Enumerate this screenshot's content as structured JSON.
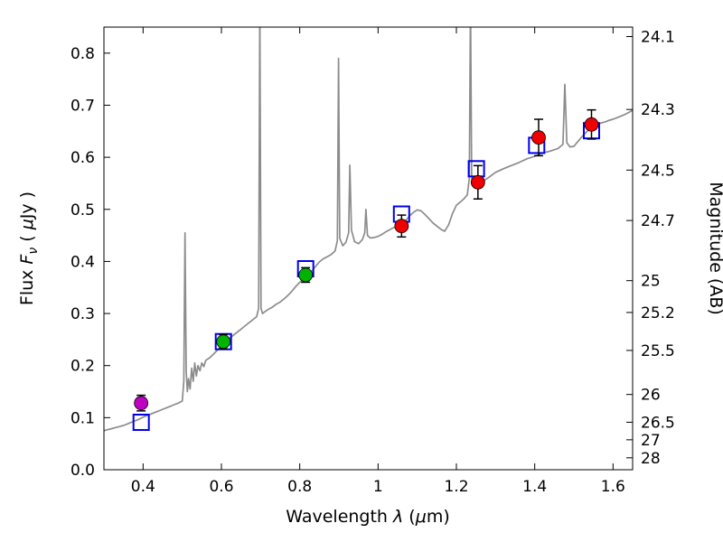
{
  "figure": {
    "background": "#ffffff",
    "xlabel_parts": [
      "Wavelength ",
      "λ",
      " (",
      "μ",
      "m)"
    ],
    "ylabel_left_parts": [
      "Flux ",
      "F",
      "ν",
      " ( ",
      "μ",
      "Jy )"
    ],
    "ylabel_right": "Magnitude (AB)"
  },
  "chart_data": {
    "type": "line+scatter",
    "title": "",
    "xlabel": "Wavelength λ (μm)",
    "ylabel_left": "Flux Fν ( μJy )",
    "ylabel_right": "Magnitude (AB)",
    "xlim": [
      0.3,
      1.65
    ],
    "ylim": [
      0.0,
      0.85
    ],
    "grid": false,
    "legend": "none",
    "x_ticks": {
      "values": [
        0.4,
        0.6,
        0.8,
        1.0,
        1.2,
        1.4,
        1.6
      ],
      "labels": [
        "0.4",
        "0.6",
        "0.8",
        "1",
        "1.2",
        "1.4",
        "1.6"
      ]
    },
    "y_ticks_left": {
      "values": [
        0.0,
        0.1,
        0.2,
        0.3,
        0.4,
        0.5,
        0.6,
        0.7,
        0.8
      ],
      "labels": [
        "0.0",
        "0.1",
        "0.2",
        "0.3",
        "0.4",
        "0.5",
        "0.6",
        "0.7",
        "0.8"
      ]
    },
    "y_ticks_right": {
      "note": "AB magnitude axis, positions given as equivalent flux in uJy",
      "values_flux": [
        0.8318,
        0.6918,
        0.5754,
        0.4786,
        0.3631,
        0.302,
        0.2291,
        0.1445,
        0.0912,
        0.0575,
        0.0229
      ],
      "labels": [
        "24.1",
        "24.3",
        "24.5",
        "24.7",
        "25",
        "25.2",
        "25.5",
        "26",
        "26.5",
        "27",
        "28"
      ]
    },
    "spectrum": {
      "name": "model-spectrum",
      "color": "#8c8c8c",
      "points": [
        [
          0.3,
          0.075
        ],
        [
          0.31,
          0.077
        ],
        [
          0.32,
          0.079
        ],
        [
          0.33,
          0.081
        ],
        [
          0.34,
          0.083
        ],
        [
          0.35,
          0.085
        ],
        [
          0.36,
          0.088
        ],
        [
          0.37,
          0.091
        ],
        [
          0.38,
          0.094
        ],
        [
          0.39,
          0.097
        ],
        [
          0.4,
          0.101
        ],
        [
          0.41,
          0.104
        ],
        [
          0.42,
          0.107
        ],
        [
          0.43,
          0.11
        ],
        [
          0.44,
          0.113
        ],
        [
          0.45,
          0.116
        ],
        [
          0.46,
          0.119
        ],
        [
          0.47,
          0.122
        ],
        [
          0.48,
          0.125
        ],
        [
          0.49,
          0.128
        ],
        [
          0.5,
          0.132
        ],
        [
          0.504,
          0.17
        ],
        [
          0.507,
          0.455
        ],
        [
          0.51,
          0.19
        ],
        [
          0.513,
          0.15
        ],
        [
          0.516,
          0.175
        ],
        [
          0.52,
          0.155
        ],
        [
          0.524,
          0.195
        ],
        [
          0.528,
          0.17
        ],
        [
          0.532,
          0.205
        ],
        [
          0.536,
          0.18
        ],
        [
          0.54,
          0.2
        ],
        [
          0.545,
          0.19
        ],
        [
          0.55,
          0.205
        ],
        [
          0.555,
          0.198
        ],
        [
          0.56,
          0.21
        ],
        [
          0.57,
          0.215
        ],
        [
          0.58,
          0.222
        ],
        [
          0.59,
          0.23
        ],
        [
          0.6,
          0.238
        ],
        [
          0.61,
          0.246
        ],
        [
          0.62,
          0.252
        ],
        [
          0.63,
          0.258
        ],
        [
          0.64,
          0.264
        ],
        [
          0.65,
          0.27
        ],
        [
          0.66,
          0.276
        ],
        [
          0.67,
          0.282
        ],
        [
          0.68,
          0.288
        ],
        [
          0.69,
          0.294
        ],
        [
          0.695,
          0.31
        ],
        [
          0.698,
          0.9
        ],
        [
          0.701,
          0.31
        ],
        [
          0.705,
          0.3
        ],
        [
          0.71,
          0.303
        ],
        [
          0.72,
          0.308
        ],
        [
          0.73,
          0.312
        ],
        [
          0.74,
          0.318
        ],
        [
          0.75,
          0.322
        ],
        [
          0.76,
          0.328
        ],
        [
          0.77,
          0.335
        ],
        [
          0.78,
          0.343
        ],
        [
          0.79,
          0.352
        ],
        [
          0.8,
          0.36
        ],
        [
          0.81,
          0.367
        ],
        [
          0.82,
          0.373
        ],
        [
          0.83,
          0.381
        ],
        [
          0.84,
          0.39
        ],
        [
          0.85,
          0.399
        ],
        [
          0.86,
          0.405
        ],
        [
          0.87,
          0.409
        ],
        [
          0.88,
          0.413
        ],
        [
          0.89,
          0.42
        ],
        [
          0.896,
          0.44
        ],
        [
          0.899,
          0.79
        ],
        [
          0.902,
          0.445
        ],
        [
          0.91,
          0.43
        ],
        [
          0.918,
          0.437
        ],
        [
          0.925,
          0.455
        ],
        [
          0.928,
          0.585
        ],
        [
          0.932,
          0.46
        ],
        [
          0.94,
          0.438
        ],
        [
          0.95,
          0.434
        ],
        [
          0.96,
          0.442
        ],
        [
          0.966,
          0.455
        ],
        [
          0.969,
          0.5
        ],
        [
          0.973,
          0.45
        ],
        [
          0.98,
          0.445
        ],
        [
          0.99,
          0.446
        ],
        [
          1.0,
          0.448
        ],
        [
          1.01,
          0.452
        ],
        [
          1.02,
          0.457
        ],
        [
          1.03,
          0.461
        ],
        [
          1.04,
          0.465
        ],
        [
          1.05,
          0.468
        ],
        [
          1.06,
          0.472
        ],
        [
          1.07,
          0.478
        ],
        [
          1.08,
          0.487
        ],
        [
          1.09,
          0.494
        ],
        [
          1.1,
          0.499
        ],
        [
          1.11,
          0.497
        ],
        [
          1.12,
          0.49
        ],
        [
          1.13,
          0.482
        ],
        [
          1.14,
          0.474
        ],
        [
          1.15,
          0.468
        ],
        [
          1.16,
          0.462
        ],
        [
          1.17,
          0.458
        ],
        [
          1.18,
          0.47
        ],
        [
          1.19,
          0.492
        ],
        [
          1.2,
          0.508
        ],
        [
          1.21,
          0.514
        ],
        [
          1.22,
          0.521
        ],
        [
          1.228,
          0.528
        ],
        [
          1.233,
          0.56
        ],
        [
          1.236,
          0.9
        ],
        [
          1.239,
          0.56
        ],
        [
          1.245,
          0.545
        ],
        [
          1.255,
          0.549
        ],
        [
          1.265,
          0.553
        ],
        [
          1.28,
          0.56
        ],
        [
          1.3,
          0.571
        ],
        [
          1.32,
          0.578
        ],
        [
          1.34,
          0.584
        ],
        [
          1.36,
          0.59
        ],
        [
          1.38,
          0.597
        ],
        [
          1.4,
          0.602
        ],
        [
          1.42,
          0.608
        ],
        [
          1.44,
          0.612
        ],
        [
          1.46,
          0.617
        ],
        [
          1.472,
          0.625
        ],
        [
          1.477,
          0.74
        ],
        [
          1.482,
          0.628
        ],
        [
          1.49,
          0.62
        ],
        [
          1.5,
          0.621
        ],
        [
          1.51,
          0.63
        ],
        [
          1.52,
          0.639
        ],
        [
          1.53,
          0.647
        ],
        [
          1.54,
          0.654
        ],
        [
          1.55,
          0.659
        ],
        [
          1.56,
          0.663
        ],
        [
          1.57,
          0.666
        ],
        [
          1.58,
          0.668
        ],
        [
          1.59,
          0.671
        ],
        [
          1.6,
          0.673
        ],
        [
          1.61,
          0.676
        ],
        [
          1.62,
          0.679
        ],
        [
          1.63,
          0.682
        ],
        [
          1.64,
          0.686
        ],
        [
          1.65,
          0.69
        ]
      ]
    },
    "observed": {
      "name": "observed-photometry",
      "marker": "circle",
      "error_color": "#000000",
      "points": [
        {
          "x": 0.395,
          "y": 0.128,
          "yerr": 0.015,
          "color": "#c000c0"
        },
        {
          "x": 0.605,
          "y": 0.246,
          "yerr": 0.014,
          "color": "#00b300"
        },
        {
          "x": 0.815,
          "y": 0.374,
          "yerr": 0.014,
          "color": "#00b300"
        },
        {
          "x": 1.06,
          "y": 0.468,
          "yerr": 0.021,
          "color": "#ee0000"
        },
        {
          "x": 1.255,
          "y": 0.552,
          "yerr": 0.032,
          "color": "#ee0000"
        },
        {
          "x": 1.41,
          "y": 0.638,
          "yerr": 0.035,
          "color": "#ee0000"
        },
        {
          "x": 1.545,
          "y": 0.663,
          "yerr": 0.028,
          "color": "#ee0000"
        }
      ]
    },
    "model_photometry": {
      "name": "model-photometry",
      "marker": "open-square",
      "color": "#0000ee",
      "size": 17,
      "points": [
        {
          "x": 0.395,
          "y": 0.091
        },
        {
          "x": 0.605,
          "y": 0.246
        },
        {
          "x": 0.815,
          "y": 0.386
        },
        {
          "x": 1.06,
          "y": 0.491
        },
        {
          "x": 1.251,
          "y": 0.578
        },
        {
          "x": 1.405,
          "y": 0.623
        },
        {
          "x": 1.545,
          "y": 0.651
        }
      ]
    }
  }
}
